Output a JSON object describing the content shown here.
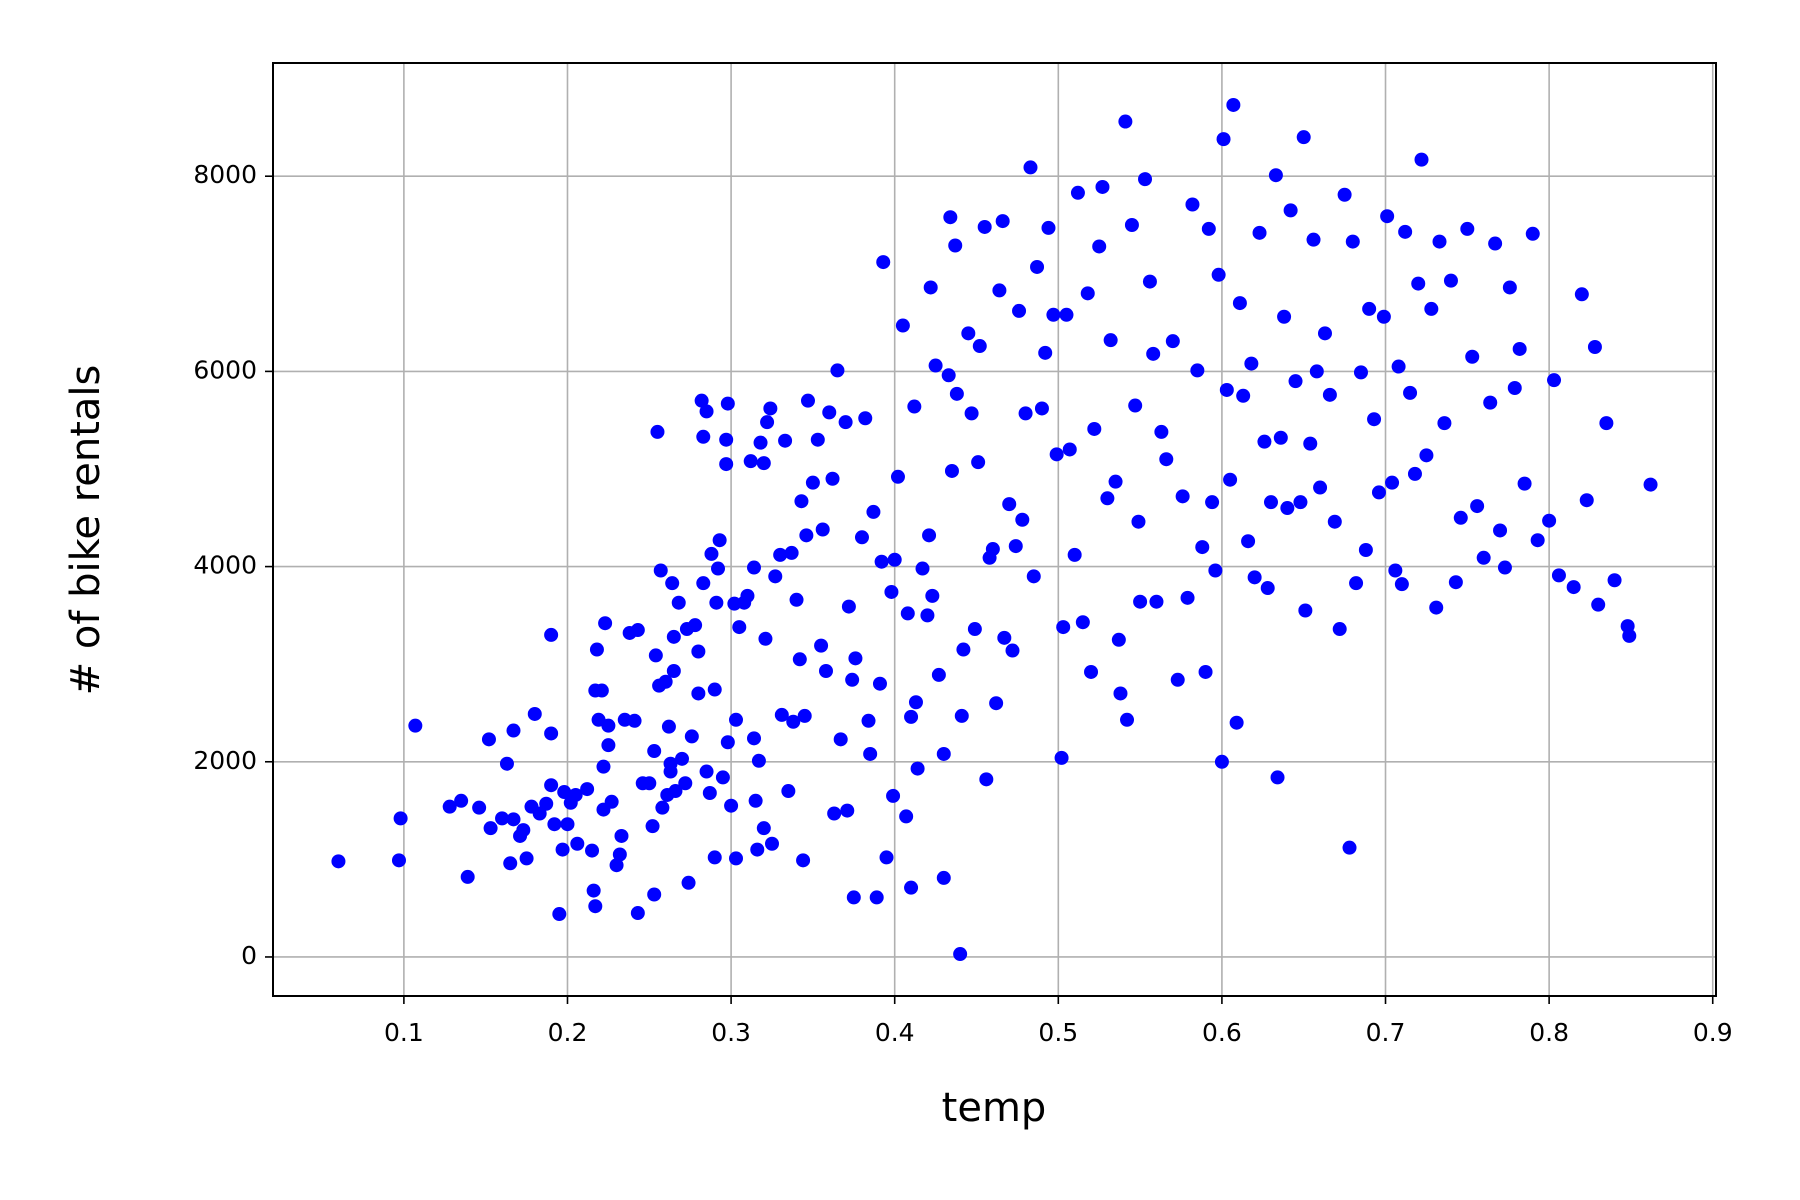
{
  "chart_data": {
    "type": "scatter",
    "x_label": "temp",
    "y_label": "# of bike rentals",
    "color": "#0000ff",
    "grid": true,
    "xlim": [
      0.02,
      0.902
    ],
    "ylim": [
      -400,
      9160
    ],
    "xticks": [
      0.1,
      0.2,
      0.3,
      0.4,
      0.5,
      0.6,
      0.7,
      0.8,
      0.9
    ],
    "yticks": [
      0,
      2000,
      4000,
      6000,
      8000
    ],
    "x": [
      0.06,
      0.097,
      0.098,
      0.107,
      0.128,
      0.135,
      0.139,
      0.146,
      0.152,
      0.153,
      0.16,
      0.163,
      0.165,
      0.167,
      0.167,
      0.171,
      0.173,
      0.175,
      0.178,
      0.18,
      0.183,
      0.187,
      0.19,
      0.19,
      0.19,
      0.192,
      0.195,
      0.197,
      0.198,
      0.2,
      0.202,
      0.205,
      0.206,
      0.212,
      0.215,
      0.216,
      0.217,
      0.217,
      0.218,
      0.219,
      0.221,
      0.222,
      0.222,
      0.223,
      0.225,
      0.225,
      0.227,
      0.23,
      0.232,
      0.233,
      0.235,
      0.238,
      0.241,
      0.243,
      0.243,
      0.246,
      0.25,
      0.252,
      0.253,
      0.253,
      0.254,
      0.255,
      0.256,
      0.257,
      0.258,
      0.26,
      0.261,
      0.262,
      0.263,
      0.263,
      0.264,
      0.265,
      0.265,
      0.266,
      0.268,
      0.27,
      0.272,
      0.273,
      0.274,
      0.276,
      0.278,
      0.28,
      0.28,
      0.282,
      0.283,
      0.283,
      0.285,
      0.285,
      0.287,
      0.288,
      0.29,
      0.29,
      0.291,
      0.292,
      0.293,
      0.295,
      0.297,
      0.297,
      0.298,
      0.298,
      0.3,
      0.302,
      0.303,
      0.303,
      0.305,
      0.308,
      0.31,
      0.312,
      0.314,
      0.314,
      0.315,
      0.316,
      0.317,
      0.318,
      0.32,
      0.32,
      0.321,
      0.322,
      0.324,
      0.325,
      0.327,
      0.33,
      0.331,
      0.333,
      0.335,
      0.337,
      0.338,
      0.34,
      0.342,
      0.343,
      0.344,
      0.345,
      0.346,
      0.347,
      0.35,
      0.353,
      0.355,
      0.356,
      0.358,
      0.36,
      0.362,
      0.363,
      0.365,
      0.367,
      0.37,
      0.371,
      0.372,
      0.374,
      0.375,
      0.376,
      0.38,
      0.382,
      0.384,
      0.385,
      0.387,
      0.389,
      0.391,
      0.392,
      0.393,
      0.395,
      0.398,
      0.399,
      0.4,
      0.402,
      0.405,
      0.407,
      0.408,
      0.41,
      0.41,
      0.412,
      0.413,
      0.414,
      0.417,
      0.42,
      0.421,
      0.422,
      0.423,
      0.425,
      0.427,
      0.43,
      0.43,
      0.433,
      0.434,
      0.435,
      0.437,
      0.438,
      0.44,
      0.441,
      0.442,
      0.445,
      0.447,
      0.449,
      0.451,
      0.452,
      0.455,
      0.456,
      0.458,
      0.46,
      0.462,
      0.464,
      0.466,
      0.467,
      0.47,
      0.472,
      0.474,
      0.476,
      0.478,
      0.48,
      0.483,
      0.485,
      0.487,
      0.49,
      0.492,
      0.494,
      0.497,
      0.499,
      0.502,
      0.503,
      0.505,
      0.507,
      0.51,
      0.512,
      0.515,
      0.518,
      0.52,
      0.522,
      0.525,
      0.527,
      0.53,
      0.532,
      0.535,
      0.537,
      0.538,
      0.541,
      0.542,
      0.545,
      0.547,
      0.549,
      0.55,
      0.553,
      0.556,
      0.558,
      0.56,
      0.563,
      0.566,
      0.57,
      0.573,
      0.576,
      0.579,
      0.582,
      0.585,
      0.588,
      0.59,
      0.592,
      0.594,
      0.596,
      0.598,
      0.6,
      0.601,
      0.603,
      0.605,
      0.607,
      0.609,
      0.611,
      0.613,
      0.616,
      0.618,
      0.62,
      0.623,
      0.626,
      0.628,
      0.63,
      0.633,
      0.634,
      0.636,
      0.638,
      0.64,
      0.642,
      0.645,
      0.648,
      0.65,
      0.651,
      0.654,
      0.656,
      0.658,
      0.66,
      0.663,
      0.666,
      0.669,
      0.672,
      0.675,
      0.678,
      0.68,
      0.682,
      0.685,
      0.688,
      0.69,
      0.693,
      0.696,
      0.699,
      0.701,
      0.704,
      0.706,
      0.708,
      0.71,
      0.712,
      0.715,
      0.718,
      0.72,
      0.722,
      0.725,
      0.728,
      0.731,
      0.733,
      0.736,
      0.74,
      0.743,
      0.746,
      0.75,
      0.753,
      0.756,
      0.76,
      0.764,
      0.767,
      0.77,
      0.773,
      0.776,
      0.779,
      0.782,
      0.785,
      0.79,
      0.793,
      0.8,
      0.803,
      0.806,
      0.815,
      0.82,
      0.823,
      0.828,
      0.83,
      0.835,
      0.84,
      0.848,
      0.849,
      0.862
    ],
    "values": [
      980,
      990,
      1420,
      2370,
      1540,
      1600,
      820,
      1530,
      2230,
      1320,
      1420,
      1980,
      960,
      1410,
      2320,
      1240,
      1300,
      1010,
      1540,
      2490,
      1470,
      1570,
      1760,
      2290,
      3300,
      1360,
      440,
      1100,
      1690,
      1360,
      1580,
      1660,
      1160,
      1720,
      1090,
      680,
      2730,
      520,
      3150,
      2430,
      2730,
      1950,
      1510,
      3420,
      2370,
      2170,
      1590,
      940,
      1050,
      1240,
      2430,
      3320,
      2420,
      450,
      3350,
      1780,
      1780,
      1340,
      640,
      2110,
      3090,
      5380,
      2780,
      3960,
      1530,
      2820,
      1660,
      2360,
      1980,
      1900,
      3830,
      2930,
      3280,
      1700,
      3630,
      2030,
      1780,
      3360,
      760,
      2260,
      3400,
      3130,
      2700,
      5700,
      3830,
      5330,
      1900,
      5590,
      1680,
      4130,
      1020,
      2740,
      3630,
      3980,
      4270,
      1840,
      5050,
      5300,
      2200,
      5670,
      1550,
      3620,
      1010,
      2430,
      3380,
      3630,
      3700,
      5080,
      2240,
      3990,
      1600,
      1100,
      2010,
      5270,
      5060,
      1320,
      3260,
      5480,
      5620,
      1160,
      3900,
      4120,
      2480,
      5290,
      1700,
      4140,
      2410,
      3660,
      3050,
      4670,
      990,
      2470,
      4320,
      5700,
      4860,
      5300,
      3190,
      4380,
      2930,
      5580,
      4900,
      1470,
      6010,
      2230,
      5480,
      1500,
      3590,
      2840,
      610,
      3060,
      4300,
      5520,
      2420,
      2080,
      4560,
      610,
      2800,
      4050,
      7120,
      1020,
      3740,
      1650,
      4070,
      4920,
      6470,
      1440,
      3520,
      710,
      2460,
      5640,
      2610,
      1930,
      3980,
      3500,
      4320,
      6860,
      3700,
      6060,
      2890,
      810,
      2080,
      5960,
      7580,
      4980,
      7290,
      5770,
      30,
      2470,
      3150,
      6390,
      5570,
      3360,
      5070,
      6260,
      7480,
      1820,
      4090,
      4180,
      2600,
      6830,
      7540,
      3270,
      4640,
      3140,
      4210,
      6620,
      4480,
      5570,
      8090,
      3900,
      7070,
      5620,
      6190,
      7470,
      6580,
      5150,
      2040,
      3380,
      6580,
      5200,
      4120,
      7830,
      3430,
      6800,
      2920,
      5410,
      7280,
      7890,
      4700,
      6320,
      4870,
      3250,
      2700,
      8560,
      2430,
      7500,
      5650,
      4460,
      3640,
      7970,
      6920,
      6180,
      3640,
      5380,
      5100,
      6310,
      2840,
      4720,
      3680,
      7710,
      6010,
      4200,
      2920,
      7460,
      4660,
      3960,
      6990,
      2000,
      8380,
      5810,
      4890,
      8730,
      2400,
      6700,
      5750,
      4260,
      6080,
      3890,
      7420,
      5280,
      3780,
      4660,
      8010,
      1840,
      5320,
      6560,
      4600,
      7650,
      5900,
      4660,
      8400,
      3550,
      5260,
      7350,
      6000,
      4810,
      6390,
      5760,
      4460,
      3360,
      7810,
      1120,
      7330,
      3830,
      5990,
      4170,
      6640,
      5510,
      4760,
      6560,
      7590,
      4860,
      3960,
      6050,
      3820,
      7430,
      5780,
      4950,
      6900,
      8170,
      5140,
      6640,
      3580,
      7330,
      5470,
      6930,
      3840,
      4500,
      7460,
      6150,
      4620,
      4090,
      5680,
      7310,
      4370,
      3990,
      6860,
      5830,
      6230,
      4850,
      7410,
      4270,
      4470,
      5910,
      3910,
      3790,
      6790,
      4680,
      6250,
      3610,
      5470,
      3860,
      3390,
      3290,
      4840
    ]
  }
}
